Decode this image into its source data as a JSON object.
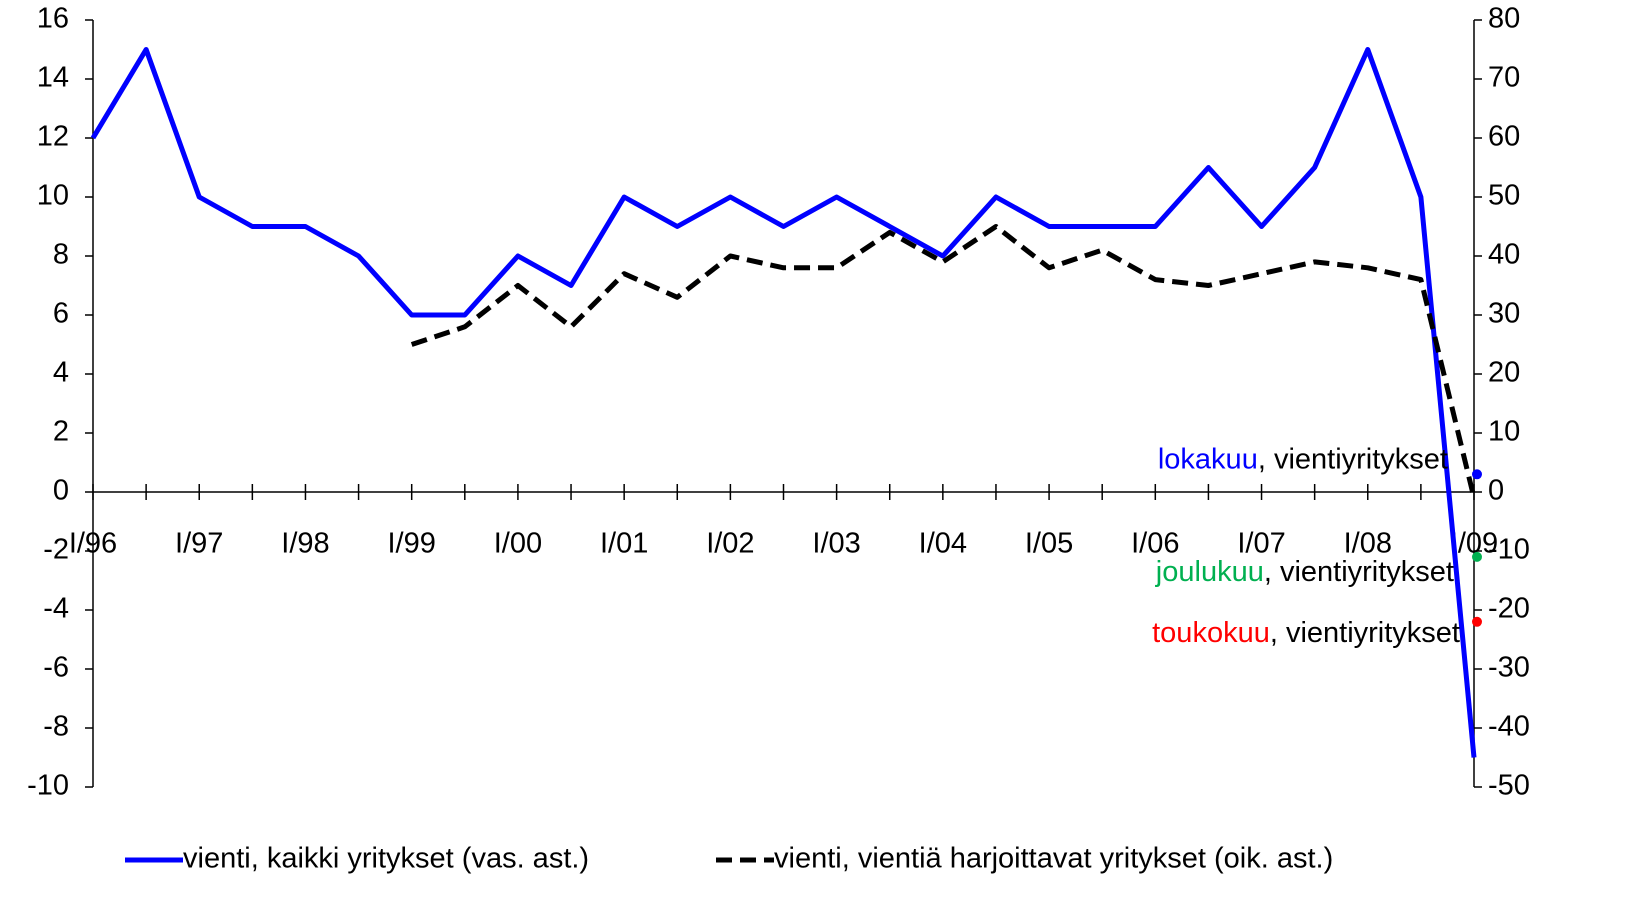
{
  "chart_data": {
    "type": "line",
    "categories": [
      "I/96",
      null,
      "I/97",
      null,
      "I/98",
      null,
      "I/99",
      null,
      "I/00",
      null,
      "I/01",
      null,
      "I/02",
      null,
      "I/03",
      null,
      "I/04",
      null,
      "I/05",
      null,
      "I/06",
      null,
      "I/07",
      null,
      "I/08",
      null,
      "I/09"
    ],
    "series": [
      {
        "name": "vienti, kaikki yritykset (vas. ast.)",
        "color": "#0000ff",
        "dash": false,
        "values": [
          12,
          15,
          10,
          9,
          9,
          8,
          6,
          6,
          8,
          7,
          10,
          9,
          10,
          9,
          10,
          9,
          8,
          10,
          9,
          9,
          9,
          11,
          9,
          11,
          15,
          10,
          -9
        ]
      },
      {
        "name": "vienti, vientiä harjoittavat yritykset (oik. ast.)",
        "color": "#000000",
        "dash": true,
        "axis": "y2",
        "values": [
          null,
          null,
          null,
          null,
          null,
          null,
          25,
          28,
          35,
          28,
          37,
          33,
          40,
          38,
          38,
          44,
          39,
          45,
          38,
          41,
          36,
          35,
          37,
          39,
          38,
          36,
          -1
        ]
      }
    ],
    "ylim": [
      -10,
      16
    ],
    "yticks": [
      -10,
      -8,
      -6,
      -4,
      -2,
      0,
      2,
      4,
      6,
      8,
      10,
      12,
      14,
      16
    ],
    "y2lim": [
      -50,
      80
    ],
    "y2ticks": [
      -50,
      -40,
      -30,
      -20,
      -10,
      0,
      10,
      20,
      30,
      40,
      50,
      60,
      70,
      80
    ],
    "annotations": [
      {
        "label": "lokakuu",
        "text": ", vientiyritykset",
        "value": 3,
        "color": "#0000ff"
      },
      {
        "label": "joulukuu",
        "text": ", vientiyritykset",
        "value": -11,
        "color": "#00b050"
      },
      {
        "label": "toukokuu",
        "text": ", vientiyritykset",
        "value": -22,
        "color": "#ff0000"
      }
    ],
    "legend": "bottom"
  }
}
